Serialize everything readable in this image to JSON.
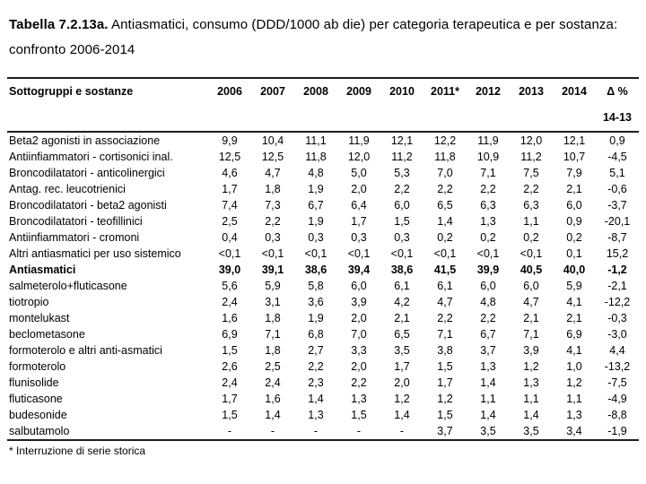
{
  "title": {
    "prefix": "Tabella 7.2.13a.",
    "text": " Antiasmatici, consumo (DDD/1000 ab die) per categoria terapeutica e per sostanza: confronto 2006-2014"
  },
  "table": {
    "header": {
      "label": "Sottogruppi e sostanze",
      "years": [
        "2006",
        "2007",
        "2008",
        "2009",
        "2010",
        "2011*",
        "2012",
        "2013",
        "2014"
      ],
      "delta": "Δ %",
      "delta_sub": "14-13"
    },
    "rows": [
      {
        "label": "Beta2 agonisti in associazione",
        "bold": false,
        "values": [
          "9,9",
          "10,4",
          "11,1",
          "11,9",
          "12,1",
          "12,2",
          "11,9",
          "12,0",
          "12,1",
          "0,9"
        ]
      },
      {
        "label": "Antiinfiammatori - cortisonici inal.",
        "bold": false,
        "values": [
          "12,5",
          "12,5",
          "11,8",
          "12,0",
          "11,2",
          "11,8",
          "10,9",
          "11,2",
          "10,7",
          "-4,5"
        ]
      },
      {
        "label": "Broncodilatatori - anticolinergici",
        "bold": false,
        "values": [
          "4,6",
          "4,7",
          "4,8",
          "5,0",
          "5,3",
          "7,0",
          "7,1",
          "7,5",
          "7,9",
          "5,1"
        ]
      },
      {
        "label": "Antag. rec. leucotrienici",
        "bold": false,
        "values": [
          "1,7",
          "1,8",
          "1,9",
          "2,0",
          "2,2",
          "2,2",
          "2,2",
          "2,2",
          "2,1",
          "-0,6"
        ]
      },
      {
        "label": "Broncodilatatori - beta2 agonisti",
        "bold": false,
        "values": [
          "7,4",
          "7,3",
          "6,7",
          "6,4",
          "6,0",
          "6,5",
          "6,3",
          "6,3",
          "6,0",
          "-3,7"
        ]
      },
      {
        "label": "Broncodilatatori - teofillinici",
        "bold": false,
        "values": [
          "2,5",
          "2,2",
          "1,9",
          "1,7",
          "1,5",
          "1,4",
          "1,3",
          "1,1",
          "0,9",
          "-20,1"
        ]
      },
      {
        "label": "Antiinfiammatori - cromoni",
        "bold": false,
        "values": [
          "0,4",
          "0,3",
          "0,3",
          "0,3",
          "0,3",
          "0,2",
          "0,2",
          "0,2",
          "0,2",
          "-8,7"
        ]
      },
      {
        "label": "Altri antiasmatici per uso sistemico",
        "bold": false,
        "values": [
          "<0,1",
          "<0,1",
          "<0,1",
          "<0,1",
          "<0,1",
          "<0,1",
          "<0,1",
          "<0,1",
          "0,1",
          "15,2"
        ]
      },
      {
        "label": "Antiasmatici",
        "bold": true,
        "values": [
          "39,0",
          "39,1",
          "38,6",
          "39,4",
          "38,6",
          "41,5",
          "39,9",
          "40,5",
          "40,0",
          "-1,2"
        ]
      },
      {
        "label": "salmeterolo+fluticasone",
        "bold": false,
        "values": [
          "5,6",
          "5,9",
          "5,8",
          "6,0",
          "6,1",
          "6,1",
          "6,0",
          "6,0",
          "5,9",
          "-2,1"
        ]
      },
      {
        "label": "tiotropio",
        "bold": false,
        "values": [
          "2,4",
          "3,1",
          "3,6",
          "3,9",
          "4,2",
          "4,7",
          "4,8",
          "4,7",
          "4,1",
          "-12,2"
        ]
      },
      {
        "label": "montelukast",
        "bold": false,
        "values": [
          "1,6",
          "1,8",
          "1,9",
          "2,0",
          "2,1",
          "2,2",
          "2,2",
          "2,1",
          "2,1",
          "-0,3"
        ]
      },
      {
        "label": "beclometasone",
        "bold": false,
        "values": [
          "6,9",
          "7,1",
          "6,8",
          "7,0",
          "6,5",
          "7,1",
          "6,7",
          "7,1",
          "6,9",
          "-3,0"
        ]
      },
      {
        "label": "formoterolo e altri anti-asmatici",
        "bold": false,
        "values": [
          "1,5",
          "1,8",
          "2,7",
          "3,3",
          "3,5",
          "3,8",
          "3,7",
          "3,9",
          "4,1",
          "4,4"
        ]
      },
      {
        "label": "formoterolo",
        "bold": false,
        "values": [
          "2,6",
          "2,5",
          "2,2",
          "2,0",
          "1,7",
          "1,5",
          "1,3",
          "1,2",
          "1,0",
          "-13,2"
        ]
      },
      {
        "label": "flunisolide",
        "bold": false,
        "values": [
          "2,4",
          "2,4",
          "2,3",
          "2,2",
          "2,0",
          "1,7",
          "1,4",
          "1,3",
          "1,2",
          "-7,5"
        ]
      },
      {
        "label": "fluticasone",
        "bold": false,
        "values": [
          "1,7",
          "1,6",
          "1,4",
          "1,3",
          "1,2",
          "1,2",
          "1,1",
          "1,1",
          "1,1",
          "-4,9"
        ]
      },
      {
        "label": "budesonide",
        "bold": false,
        "values": [
          "1,5",
          "1,4",
          "1,3",
          "1,5",
          "1,4",
          "1,5",
          "1,4",
          "1,4",
          "1,3",
          "-8,8"
        ]
      },
      {
        "label": "salbutamolo",
        "bold": false,
        "values": [
          "-",
          "-",
          "-",
          "-",
          "-",
          "3,7",
          "3,5",
          "3,5",
          "3,4",
          "-1,9"
        ]
      }
    ]
  },
  "footnote": "* Interruzione di serie storica"
}
